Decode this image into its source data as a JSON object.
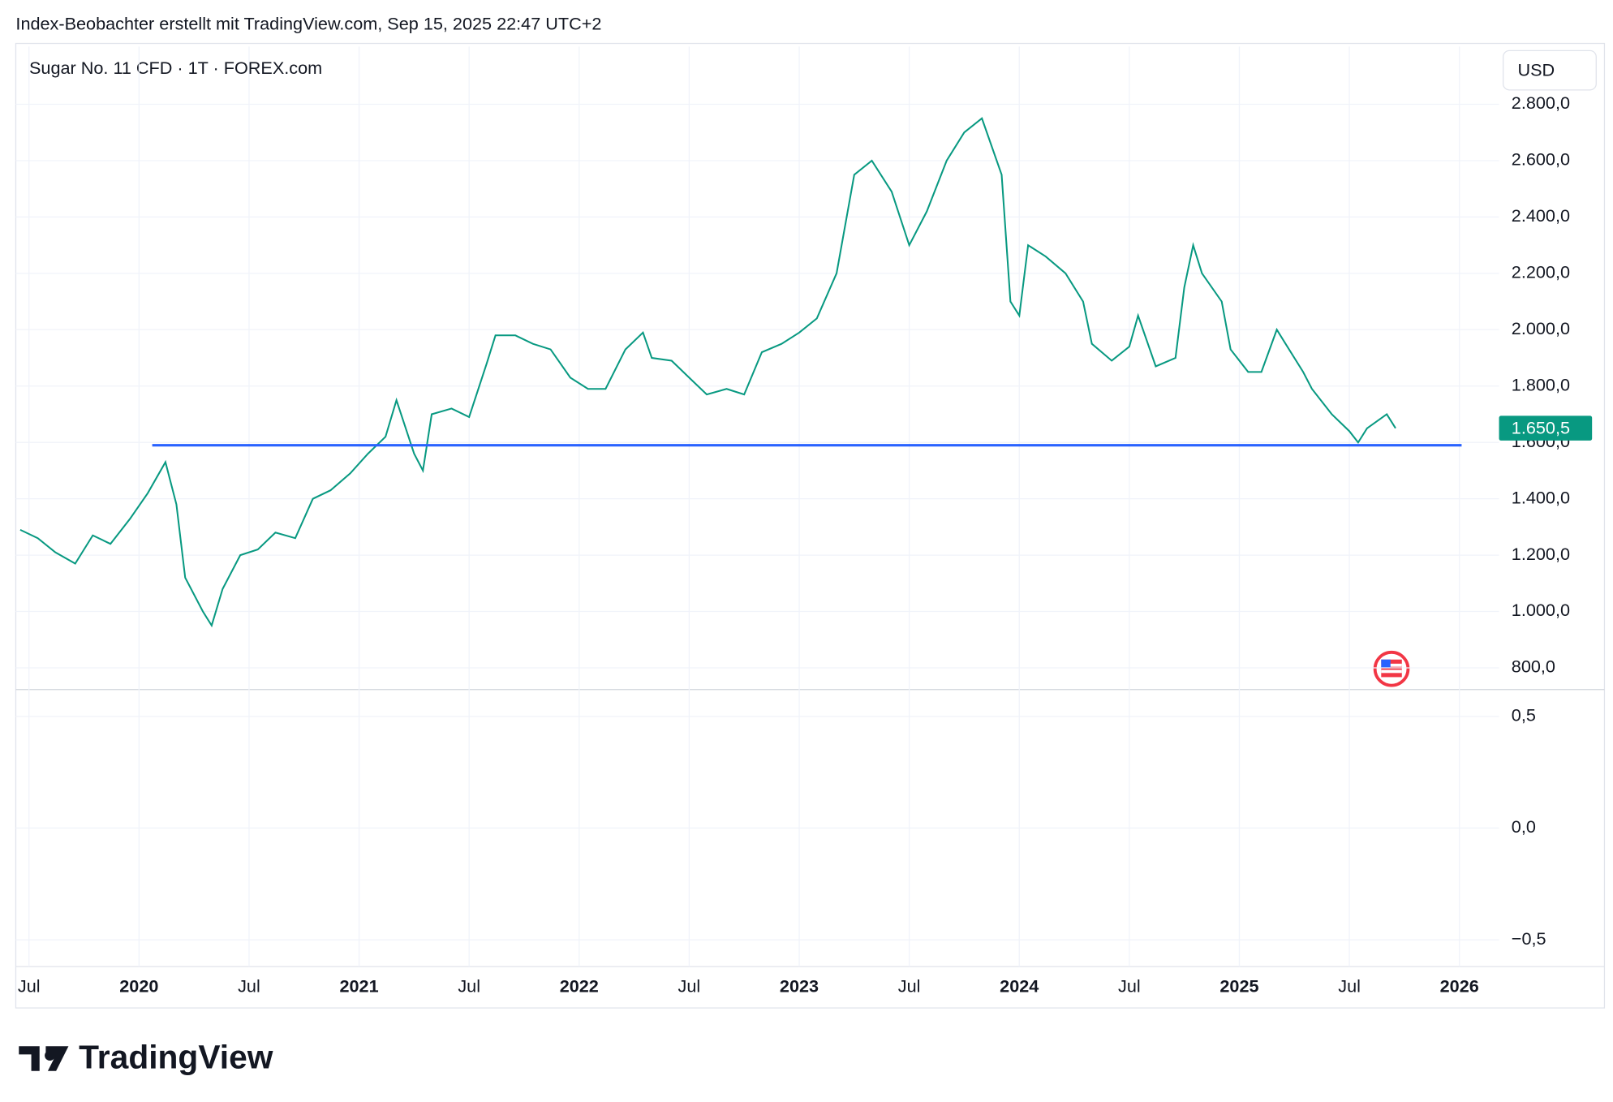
{
  "header": "Index-Beobachter erstellt mit TradingView.com, Sep 15, 2025 22:47 UTC+2",
  "logo": "TradingView",
  "chart_data": [
    {
      "type": "line",
      "title": "Sugar No. 11 CFD · 1T · FOREX.com",
      "currency": "USD",
      "color": "#089981",
      "x": [
        2019.46,
        2019.54,
        2019.62,
        2019.71,
        2019.79,
        2019.87,
        2019.96,
        2020.04,
        2020.12,
        2020.17,
        2020.21,
        2020.29,
        2020.33,
        2020.38,
        2020.46,
        2020.54,
        2020.62,
        2020.71,
        2020.79,
        2020.87,
        2020.96,
        2021.04,
        2021.12,
        2021.17,
        2021.25,
        2021.29,
        2021.33,
        2021.42,
        2021.5,
        2021.58,
        2021.62,
        2021.71,
        2021.79,
        2021.87,
        2021.96,
        2022.04,
        2022.12,
        2022.21,
        2022.29,
        2022.33,
        2022.42,
        2022.5,
        2022.58,
        2022.67,
        2022.75,
        2022.83,
        2022.92,
        2023.0,
        2023.08,
        2023.17,
        2023.25,
        2023.33,
        2023.42,
        2023.5,
        2023.58,
        2023.67,
        2023.75,
        2023.83,
        2023.92,
        2023.96,
        2024.0,
        2024.04,
        2024.12,
        2024.21,
        2024.29,
        2024.33,
        2024.42,
        2024.5,
        2024.54,
        2024.62,
        2024.71,
        2024.75,
        2024.79,
        2024.83,
        2024.92,
        2024.96,
        2025.04,
        2025.1,
        2025.17,
        2025.21,
        2025.29,
        2025.33,
        2025.42,
        2025.5,
        2025.54,
        2025.58,
        2025.67,
        2025.71
      ],
      "values": [
        1290,
        1260,
        1210,
        1170,
        1270,
        1240,
        1330,
        1420,
        1530,
        1380,
        1120,
        1000,
        950,
        1080,
        1200,
        1220,
        1280,
        1260,
        1400,
        1430,
        1490,
        1560,
        1620,
        1750,
        1560,
        1500,
        1700,
        1720,
        1690,
        1880,
        1980,
        1980,
        1950,
        1930,
        1830,
        1790,
        1790,
        1930,
        1990,
        1900,
        1890,
        1830,
        1770,
        1790,
        1770,
        1920,
        1950,
        1990,
        2040,
        2200,
        2550,
        2600,
        2490,
        2300,
        2420,
        2600,
        2700,
        2750,
        2550,
        2100,
        2050,
        2300,
        2260,
        2200,
        2100,
        1950,
        1890,
        1940,
        2050,
        1870,
        1900,
        2150,
        2300,
        2200,
        2100,
        1930,
        1850,
        1850,
        2000,
        1950,
        1850,
        1790,
        1700,
        1640,
        1600,
        1650,
        1700,
        1650.5
      ],
      "last_value": {
        "value": 1650.5,
        "label": "1.650,5"
      },
      "hline": {
        "value": 1590,
        "x": [
          2020.06,
          2026.01
        ],
        "color": "#2962ff"
      },
      "xlim": [
        2019.44,
        2026.18
      ],
      "xticks": [
        {
          "value": 2019.5,
          "label": "Jul"
        },
        2020,
        {
          "value": 2020.5,
          "label": "Jul"
        },
        2021,
        {
          "value": 2021.5,
          "label": "Jul"
        },
        2022,
        {
          "value": 2022.5,
          "label": "Jul"
        },
        2023,
        {
          "value": 2023.5,
          "label": "Jul"
        },
        2024,
        {
          "value": 2024.5,
          "label": "Jul"
        },
        2025,
        {
          "value": 2025.5,
          "label": "Jul"
        },
        2026
      ],
      "ylim": [
        723,
        3005
      ],
      "yticks": [
        {
          "value": 800,
          "label": "800,0"
        },
        {
          "value": 1000,
          "label": "1.000,0"
        },
        {
          "value": 1200,
          "label": "1.200,0"
        },
        {
          "value": 1400,
          "label": "1.400,0"
        },
        {
          "value": 1600,
          "label": "1.600,0"
        },
        {
          "value": 1800,
          "label": "1.800,0"
        },
        {
          "value": 2000,
          "label": "2.000,0"
        },
        {
          "value": 2200,
          "label": "2.200,0"
        },
        {
          "value": 2400,
          "label": "2.400,0"
        },
        {
          "value": 2600,
          "label": "2.600,0"
        },
        {
          "value": 2800,
          "label": "2.800,0"
        }
      ],
      "grid": true
    },
    {
      "type": "pane",
      "ylim": [
        -0.62,
        0.62
      ],
      "yticks": [
        {
          "value": -0.5,
          "label": "−0,5"
        },
        {
          "value": 0,
          "label": "0,0"
        },
        {
          "value": 0.5,
          "label": "0,5"
        }
      ],
      "grid": true
    }
  ]
}
